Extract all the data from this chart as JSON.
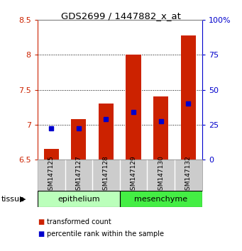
{
  "title": "GDS2699 / 1447882_x_at",
  "samples": [
    "GSM147125",
    "GSM147127",
    "GSM147128",
    "GSM147129",
    "GSM147130",
    "GSM147132"
  ],
  "bar_bottoms": [
    6.5,
    6.5,
    6.5,
    6.5,
    6.5,
    6.5
  ],
  "bar_tops": [
    6.65,
    7.08,
    7.3,
    8.0,
    7.4,
    8.28
  ],
  "percentile_values": [
    6.945,
    6.945,
    7.08,
    7.18,
    7.05,
    7.3
  ],
  "bar_color": "#cc2200",
  "marker_color": "#0000cc",
  "ylim_left": [
    6.5,
    8.5
  ],
  "yticks_left": [
    6.5,
    7.0,
    7.5,
    8.0,
    8.5
  ],
  "ytick_labels_left": [
    "6.5",
    "7",
    "7.5",
    "8",
    "8.5"
  ],
  "ylim_right": [
    0,
    100
  ],
  "yticks_right": [
    0,
    25,
    50,
    75,
    100
  ],
  "ytick_labels_right": [
    "0",
    "25",
    "50",
    "75",
    "100%"
  ],
  "tissue_groups": [
    {
      "label": "epithelium",
      "start": 0,
      "end": 3,
      "color": "#bbffbb"
    },
    {
      "label": "mesenchyme",
      "start": 3,
      "end": 6,
      "color": "#44ee44"
    }
  ],
  "tissue_label": "tissue",
  "legend_items": [
    {
      "label": "transformed count",
      "color": "#cc2200"
    },
    {
      "label": "percentile rank within the sample",
      "color": "#0000cc"
    }
  ],
  "bar_width": 0.55,
  "left_tick_color": "#cc2200",
  "right_tick_color": "#0000cc",
  "grid_color": "#000000"
}
